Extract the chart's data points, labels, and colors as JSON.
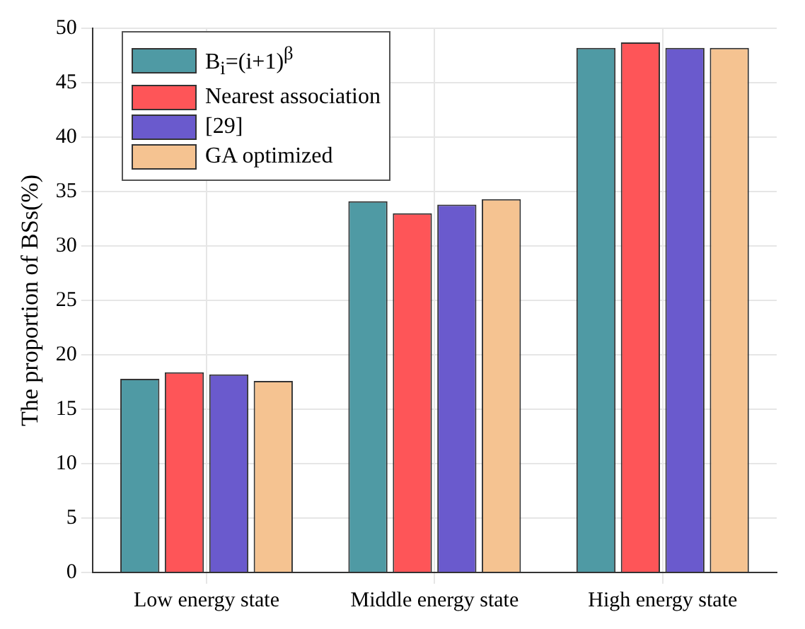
{
  "chart_data": {
    "type": "bar",
    "ylabel": "The proportion of BSs(%)",
    "categories": [
      "Low energy state",
      "Middle energy state",
      "High energy state"
    ],
    "series": [
      {
        "name": "B$_{i}$=(i+1)$^{β}$",
        "color": "#4f9aa4",
        "values": [
          17.8,
          34.1,
          48.2
        ]
      },
      {
        "name": "Nearest association",
        "color": "#fe5558",
        "values": [
          18.4,
          33.0,
          48.7
        ]
      },
      {
        "name": "[29]",
        "color": "#6a5acd",
        "values": [
          18.2,
          33.8,
          48.2
        ]
      },
      {
        "name": "GA optimized",
        "color": "#f5c391",
        "values": [
          17.6,
          34.3,
          48.2
        ]
      }
    ],
    "ylim": [
      0,
      50
    ],
    "yticks": [
      0,
      5,
      10,
      15,
      20,
      25,
      30,
      35,
      40,
      45,
      50
    ],
    "grid": true,
    "legend": "top left"
  }
}
